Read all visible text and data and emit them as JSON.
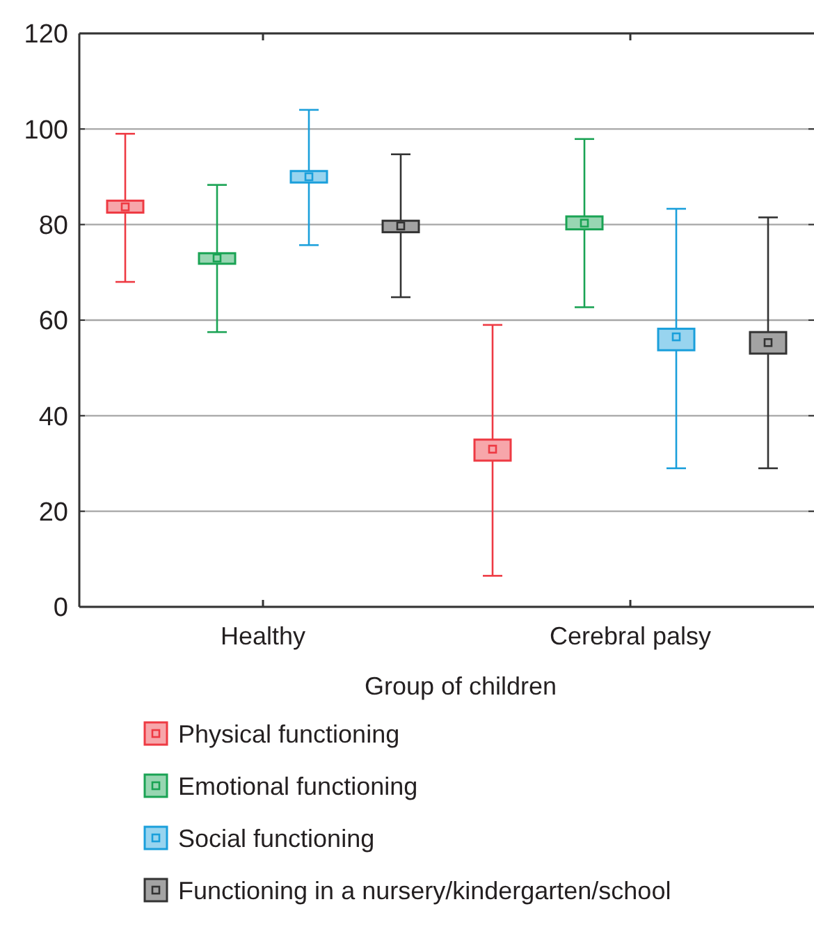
{
  "chart_data": {
    "type": "box",
    "xlabel": "Group of children",
    "categories": [
      "Healthy",
      "Cerebral palsy"
    ],
    "ylim": [
      0,
      120
    ],
    "yticks": [
      0,
      20,
      40,
      60,
      80,
      100,
      120
    ],
    "grid": "y",
    "legend": "bottom",
    "marker": "square",
    "series": [
      {
        "name": "Physical functioning",
        "color": "#ee3a43",
        "boxes": [
          {
            "low": 68,
            "q1": 82.5,
            "median": 83.7,
            "q3": 85,
            "high": 99
          },
          {
            "low": 6.5,
            "q1": 30.6,
            "median": 33,
            "q3": 35,
            "high": 59
          }
        ]
      },
      {
        "name": "Emotional functioning",
        "color": "#1aa354",
        "boxes": [
          {
            "low": 57.5,
            "q1": 71.8,
            "median": 73,
            "q3": 74,
            "high": 88.3
          },
          {
            "low": 62.7,
            "q1": 79,
            "median": 80.3,
            "q3": 81.7,
            "high": 97.9
          }
        ]
      },
      {
        "name": "Social functioning",
        "color": "#1a9fdb",
        "boxes": [
          {
            "low": 75.7,
            "q1": 88.8,
            "median": 90,
            "q3": 91.2,
            "high": 104
          },
          {
            "low": 29,
            "q1": 53.7,
            "median": 56.5,
            "q3": 58.2,
            "high": 83.3
          }
        ]
      },
      {
        "name": "Functioning in a nursery/kindergarten/school",
        "color": "#333333",
        "boxes": [
          {
            "low": 64.8,
            "q1": 78.4,
            "median": 79.7,
            "q3": 80.8,
            "high": 94.7
          },
          {
            "low": 29,
            "q1": 53,
            "median": 55.3,
            "q3": 57.5,
            "high": 81.5
          }
        ]
      }
    ]
  }
}
